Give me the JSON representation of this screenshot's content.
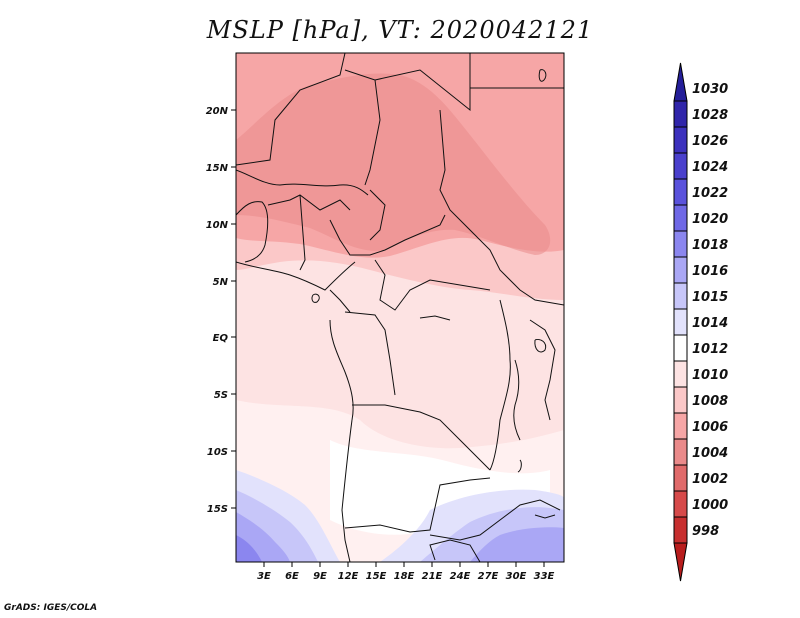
{
  "title": "MSLP [hPa], VT: 2020042121",
  "footer": "GrADS: IGES/COLA",
  "map": {
    "lat_labels": [
      "20N",
      "15N",
      "10N",
      "5N",
      "EQ",
      "5S",
      "10S",
      "15S"
    ],
    "lon_labels": [
      "3E",
      "6E",
      "9E",
      "12E",
      "15E",
      "18E",
      "21E",
      "24E",
      "27E",
      "30E",
      "33E"
    ]
  },
  "colorbar": {
    "labels": [
      "1030",
      "1028",
      "1026",
      "1024",
      "1022",
      "1020",
      "1018",
      "1016",
      "1015",
      "1014",
      "1012",
      "1010",
      "1008",
      "1006",
      "1004",
      "1002",
      "1000",
      "998"
    ],
    "colors": [
      "#241e99",
      "#3025aa",
      "#3c31bd",
      "#4a40cd",
      "#5a52dc",
      "#6f68e6",
      "#8b86ef",
      "#aaa7f5",
      "#c7c6f9",
      "#e2e2fc",
      "#ffffff",
      "#fde3e3",
      "#fbc8c8",
      "#f6a6a6",
      "#ea8a8a",
      "#e06a6a",
      "#d64a4a",
      "#c72f2f",
      "#b81d1d"
    ]
  }
}
